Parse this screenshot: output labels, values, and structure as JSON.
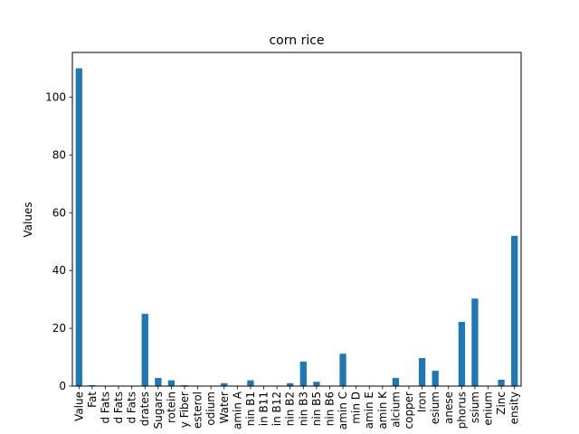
{
  "chart_data": {
    "type": "bar",
    "title": "corn rice",
    "xlabel": "",
    "ylabel": "Values",
    "ylim": [
      0,
      115.5
    ],
    "grid": false,
    "legend": "none",
    "bar_color": "#1f77b4",
    "yticks": [
      0,
      20,
      40,
      60,
      80,
      100
    ],
    "categories": [
      "Value",
      "Fat",
      "d Fats",
      "d Fats",
      "d Fats",
      "drates",
      "Sugars",
      "rotein",
      "y Fiber",
      "esterol",
      "odium",
      "Water",
      "amin A",
      "nin B1",
      "in B11",
      "in B12",
      "nin B2",
      "nin B3",
      "nin B5",
      "nin B6",
      "amin C",
      "min D",
      "amin E",
      "amin K",
      "alcium",
      "copper",
      "Iron",
      "esium",
      "anese",
      "phorus",
      "ssium",
      "enium",
      "Zinc",
      "ensity"
    ],
    "values": [
      110,
      0.3,
      0,
      0,
      0,
      25,
      2.8,
      2,
      0.3,
      0,
      0,
      1,
      0,
      2,
      0,
      0,
      1,
      8.5,
      1.5,
      0,
      11.2,
      0,
      0,
      0,
      2.8,
      0,
      9.7,
      5.3,
      0,
      22.2,
      30.3,
      0,
      2.2,
      52
    ]
  }
}
